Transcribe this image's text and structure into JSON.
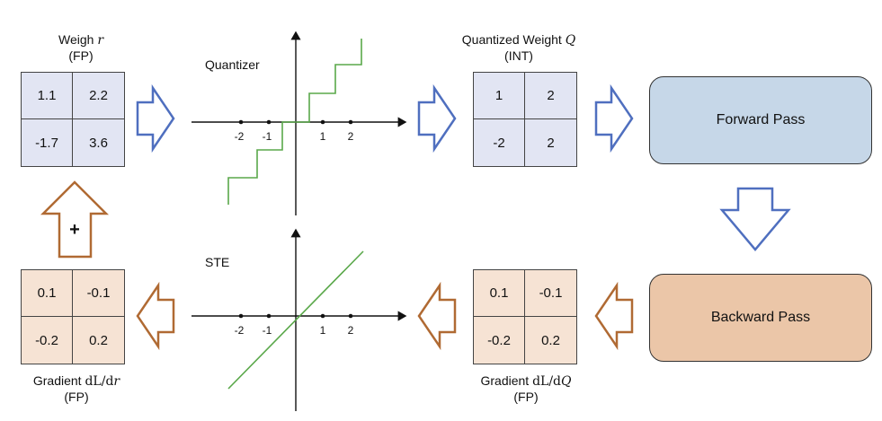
{
  "weight_label": {
    "line1": "Weigh",
    "var": "r",
    "line2": "(FP)"
  },
  "weight_matrix": [
    "1.1",
    "2.2",
    "-1.7",
    "3.6"
  ],
  "quantizer": {
    "title": "Quantizer",
    "ticks": [
      "-2",
      "-1",
      "1",
      "2"
    ]
  },
  "quantized_label": {
    "line1": "Quantized Weight",
    "var": "Q",
    "line2": "(INT)"
  },
  "quantized_matrix": [
    "1",
    "2",
    "-2",
    "2"
  ],
  "forward_pass": "Forward Pass",
  "backward_pass": "Backward Pass",
  "ste": {
    "title": "STE",
    "ticks": [
      "-2",
      "-1",
      "1",
      "2"
    ]
  },
  "grad_q_matrix": [
    "0.1",
    "-0.1",
    "-0.2",
    "0.2"
  ],
  "grad_q_label": {
    "line1": "Gradient",
    "dl": "dL/d",
    "var": "Q",
    "line2": "(FP)"
  },
  "grad_r_matrix": [
    "0.1",
    "-0.1",
    "-0.2",
    "0.2"
  ],
  "grad_r_label": {
    "line1": "Gradient",
    "dl": "dL/d",
    "var": "r",
    "line2": "(FP)"
  },
  "plus_sign": "+",
  "colors": {
    "forward_arrow": "#4f6fbf",
    "backward_arrow": "#b06a33",
    "quantizer_curve": "#5aa84a",
    "ste_line": "#5aa84a",
    "forward_box": "#c6d7e8",
    "backward_box": "#ebc6a8",
    "matrix_blue": "#e2e5f3",
    "matrix_peach": "#f6e3d4"
  }
}
